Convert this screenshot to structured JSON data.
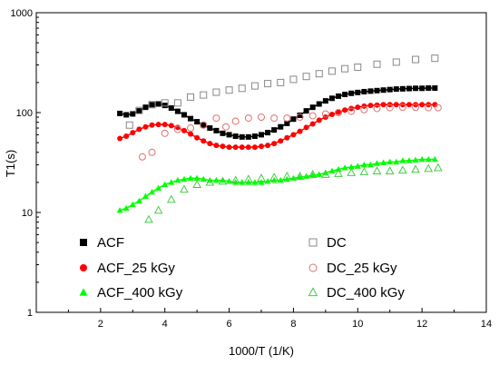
{
  "chart_data": {
    "type": "scatter",
    "title": "",
    "xlabel": "1000/T  (1/K)",
    "ylabel": "T1(s)",
    "xlim": [
      0,
      14
    ],
    "ylim": [
      1,
      1000
    ],
    "yscale": "log",
    "x_ticks": [
      2,
      4,
      6,
      8,
      10,
      12,
      14
    ],
    "y_ticks": [
      1,
      10,
      100,
      1000
    ],
    "x_tick_labels": [
      "2",
      "4",
      "6",
      "8",
      "10",
      "12",
      "14"
    ],
    "y_tick_labels": [
      "1",
      "10",
      "100",
      "1000"
    ],
    "grid": false,
    "legend_position": "bottom, two columns",
    "series": [
      {
        "name": "ACF",
        "marker": "square",
        "filled": true,
        "color": "#000000",
        "x": [
          2.6,
          2.8,
          3.0,
          3.2,
          3.4,
          3.6,
          3.8,
          4.0,
          4.2,
          4.4,
          4.6,
          4.8,
          5.0,
          5.2,
          5.4,
          5.6,
          5.8,
          6.0,
          6.2,
          6.4,
          6.6,
          6.8,
          7.0,
          7.2,
          7.4,
          7.6,
          7.8,
          8.0,
          8.2,
          8.4,
          8.6,
          8.8,
          9.0,
          9.2,
          9.4,
          9.6,
          9.8,
          10.0,
          10.2,
          10.4,
          10.6,
          10.8,
          11.0,
          11.2,
          11.4,
          11.6,
          11.8,
          12.0,
          12.2,
          12.4
        ],
        "y": [
          98,
          95,
          97,
          104,
          113,
          120,
          122,
          118,
          111,
          103,
          95,
          87,
          81,
          75,
          70,
          66,
          62,
          60,
          58,
          57,
          57,
          58,
          60,
          63,
          67,
          72,
          78,
          86,
          94,
          104,
          113,
          122,
          131,
          139,
          146,
          152,
          156,
          159,
          162,
          164,
          166,
          168,
          170,
          172,
          173,
          174,
          175,
          175,
          176,
          176
        ],
        "fit_line": true
      },
      {
        "name": "ACF_25 kGy",
        "marker": "circle",
        "filled": true,
        "color": "#ff0000",
        "x": [
          2.6,
          2.8,
          3.0,
          3.2,
          3.4,
          3.6,
          3.8,
          4.0,
          4.2,
          4.4,
          4.6,
          4.8,
          5.0,
          5.2,
          5.4,
          5.6,
          5.8,
          6.0,
          6.2,
          6.4,
          6.6,
          6.8,
          7.0,
          7.2,
          7.4,
          7.6,
          7.8,
          8.0,
          8.2,
          8.4,
          8.6,
          8.8,
          9.0,
          9.2,
          9.4,
          9.6,
          9.8,
          10.0,
          10.2,
          10.4,
          10.6,
          10.8,
          11.0,
          11.2,
          11.4,
          11.6,
          11.8,
          12.0,
          12.2,
          12.4
        ],
        "y": [
          55,
          58,
          63,
          68,
          72,
          75,
          76,
          76,
          74,
          71,
          66,
          61,
          56,
          52,
          49,
          47,
          46,
          45,
          45,
          45,
          45,
          45,
          46,
          47,
          49,
          52,
          56,
          60,
          65,
          71,
          77,
          84,
          90,
          96,
          101,
          106,
          110,
          113,
          116,
          118,
          119,
          120,
          120,
          120,
          120,
          120,
          120,
          120,
          120,
          120
        ],
        "fit_line": true
      },
      {
        "name": "ACF_400 kGy",
        "marker": "triangle",
        "filled": true,
        "color": "#00ff00",
        "x": [
          2.6,
          2.8,
          3.0,
          3.2,
          3.4,
          3.6,
          3.8,
          4.0,
          4.2,
          4.4,
          4.6,
          4.8,
          5.0,
          5.2,
          5.4,
          5.6,
          5.8,
          6.0,
          6.2,
          6.4,
          6.6,
          6.8,
          7.0,
          7.2,
          7.4,
          7.6,
          7.8,
          8.0,
          8.2,
          8.4,
          8.6,
          8.8,
          9.0,
          9.2,
          9.4,
          9.6,
          9.8,
          10.0,
          10.2,
          10.4,
          10.6,
          10.8,
          11.0,
          11.2,
          11.4,
          11.6,
          11.8,
          12.0,
          12.2,
          12.4
        ],
        "y": [
          10.5,
          11,
          12,
          13,
          14.5,
          16,
          17.5,
          19,
          20,
          21,
          21.5,
          22,
          22,
          21.5,
          21,
          21,
          21,
          20.5,
          20,
          20,
          20,
          20,
          20,
          20.5,
          21,
          21,
          21.5,
          22,
          22.5,
          23,
          23.5,
          24,
          25,
          26,
          27,
          28,
          28.5,
          29,
          30,
          30,
          31,
          31.5,
          32,
          32,
          33,
          33,
          33.5,
          34,
          34,
          34
        ],
        "fit_line": true
      },
      {
        "name": "DC",
        "marker": "square",
        "filled": false,
        "color": "#888888",
        "x": [
          2.9,
          3.2,
          3.6,
          4.0,
          4.4,
          4.8,
          5.2,
          5.6,
          6.0,
          6.4,
          6.8,
          7.2,
          7.6,
          8.0,
          8.4,
          8.8,
          9.2,
          9.6,
          10.0,
          10.6,
          11.2,
          11.8,
          12.4
        ],
        "y": [
          75,
          105,
          120,
          125,
          125,
          143,
          150,
          160,
          168,
          175,
          185,
          195,
          200,
          215,
          230,
          245,
          260,
          275,
          285,
          305,
          320,
          340,
          350
        ],
        "fit_line": false
      },
      {
        "name": "DC_25 kGy",
        "marker": "circle",
        "filled": false,
        "color": "#e07070",
        "x": [
          3.3,
          3.6,
          4.0,
          4.4,
          4.8,
          5.2,
          5.6,
          5.9,
          6.2,
          6.6,
          7.0,
          7.4,
          7.8,
          8.2,
          8.6,
          9.0,
          9.4,
          9.8,
          10.2,
          10.6,
          11.0,
          11.4,
          11.8,
          12.2,
          12.5
        ],
        "y": [
          36,
          40,
          62,
          68,
          70,
          75,
          88,
          72,
          82,
          88,
          90,
          88,
          88,
          90,
          93,
          97,
          100,
          103,
          107,
          110,
          112,
          113,
          113,
          112,
          112
        ],
        "fit_line": false
      },
      {
        "name": "DC_400 kGy",
        "marker": "triangle",
        "filled": false,
        "color": "#44cc44",
        "x": [
          3.5,
          3.8,
          4.2,
          4.6,
          5.0,
          5.4,
          5.8,
          6.2,
          6.6,
          7.0,
          7.4,
          7.8,
          8.2,
          8.6,
          9.0,
          9.4,
          9.8,
          10.2,
          10.6,
          11.0,
          11.4,
          11.8,
          12.2,
          12.5
        ],
        "y": [
          8.5,
          10.5,
          13.5,
          17,
          19,
          20,
          20.5,
          21,
          21.5,
          22,
          22.5,
          23,
          23,
          24,
          24,
          24.5,
          25,
          25.5,
          26,
          26,
          26.5,
          27,
          27.5,
          28
        ],
        "fit_line": false
      }
    ]
  }
}
